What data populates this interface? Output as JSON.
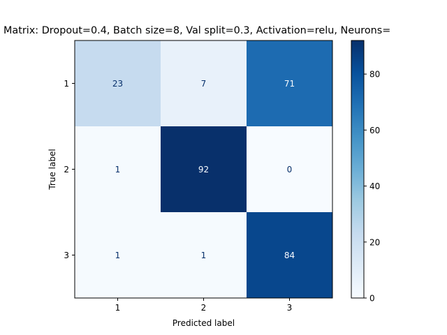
{
  "chart_data": {
    "type": "heatmap",
    "title": "Matrix: Dropout=0.4, Batch size=8, Val split=0.3, Activation=relu, Neurons=",
    "xlabel": "Predicted label",
    "ylabel": "True label",
    "x_categories": [
      "1",
      "2",
      "3"
    ],
    "y_categories": [
      "1",
      "2",
      "3"
    ],
    "values": [
      [
        23,
        7,
        71
      ],
      [
        1,
        92,
        0
      ],
      [
        1,
        1,
        84
      ]
    ],
    "colormap": "Blues",
    "colorbar": {
      "range": [
        0,
        92
      ],
      "ticks": [
        0,
        20,
        40,
        60,
        80
      ],
      "tick_labels": [
        "0",
        "20",
        "40",
        "60",
        "80"
      ]
    },
    "colors": {
      "low": "#f7fbff",
      "high": "#08306b",
      "text_light": "#f7fbff",
      "text_dark": "#08306b"
    },
    "grid": false
  }
}
